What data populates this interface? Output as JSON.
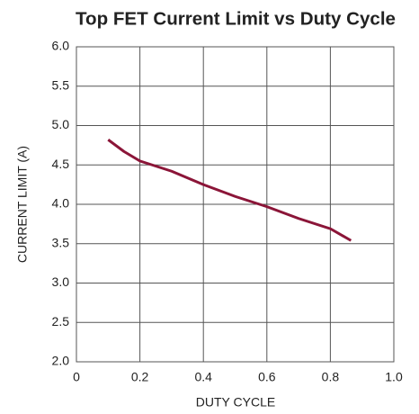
{
  "chart_data": {
    "type": "line",
    "title": "Top FET Current Limit vs Duty Cycle",
    "x_label": "DUTY CYCLE",
    "y_label": "CURRENT LIMIT (A)",
    "x": [
      0.1,
      0.15,
      0.2,
      0.3,
      0.4,
      0.5,
      0.6,
      0.7,
      0.8,
      0.865
    ],
    "series": [
      {
        "name": "Current Limit",
        "color": "#8b1538",
        "values": [
          4.82,
          4.67,
          4.55,
          4.42,
          4.25,
          4.1,
          3.97,
          3.82,
          3.69,
          3.54
        ]
      }
    ],
    "xlim": [
      0,
      1
    ],
    "xticks": [
      0,
      0.2,
      0.4,
      0.6,
      0.8,
      {
        "value": 1,
        "label": "1.0"
      }
    ],
    "ylim": [
      2,
      6
    ],
    "yticks": [
      {
        "value": 2,
        "label": "2.0"
      },
      2.5,
      {
        "value": 3,
        "label": "3.0"
      },
      3.5,
      {
        "value": 4,
        "label": "4.0"
      },
      4.5,
      {
        "value": 5,
        "label": "5.0"
      },
      5.5,
      {
        "value": 6,
        "label": "6.0"
      }
    ],
    "grid": true
  }
}
